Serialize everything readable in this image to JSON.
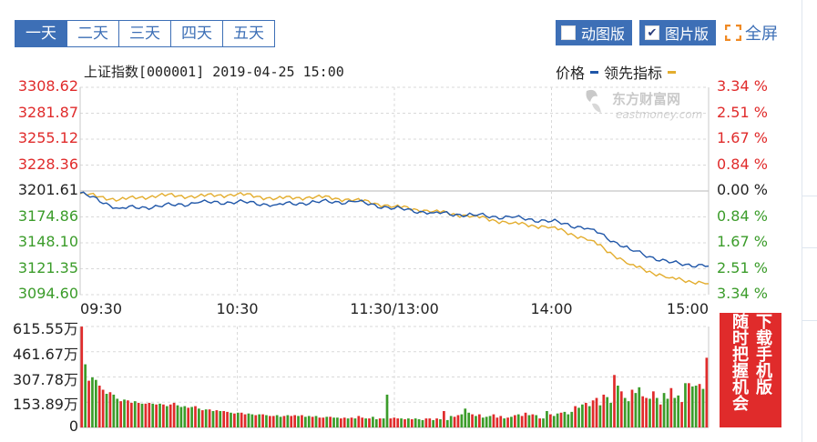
{
  "tabs": [
    {
      "label": "一天",
      "active": true
    },
    {
      "label": "二天",
      "active": false
    },
    {
      "label": "三天",
      "active": false
    },
    {
      "label": "四天",
      "active": false
    },
    {
      "label": "五天",
      "active": false
    }
  ],
  "view_modes": {
    "animated_label": "动图版",
    "animated_checked": false,
    "picture_label": "图片版",
    "picture_checked": true
  },
  "fullscreen_label": "全屏",
  "chart_header": {
    "title": "上证指数[000001] 2019-04-25 15:00",
    "legend_price": "价格",
    "legend_leading": "领先指标"
  },
  "watermark": {
    "name": "东方财富网",
    "domain": "eastmoney.com"
  },
  "ad_lines": [
    "下载手机版",
    "随时把握机会"
  ],
  "colors": {
    "up": "#e02b2b",
    "down": "#3b9c2a",
    "neutral": "#222222",
    "price_line": "#1f56a8",
    "leading_line": "#e3ad2e",
    "tab_blue": "#3d6fb6"
  },
  "chart_data": [
    {
      "type": "line",
      "title": "上证指数[000001] 2019-04-25 15:00",
      "x_ticks": [
        "09:30",
        "10:30",
        "11:30/13:00",
        "14:00",
        "15:00"
      ],
      "y_left_ticks": [
        {
          "label": "3308.62",
          "value": 3308.62,
          "trend": "up"
        },
        {
          "label": "3281.87",
          "value": 3281.87,
          "trend": "up"
        },
        {
          "label": "3255.12",
          "value": 3255.12,
          "trend": "up"
        },
        {
          "label": "3228.36",
          "value": 3228.36,
          "trend": "up"
        },
        {
          "label": "3201.61",
          "value": 3201.61,
          "trend": "flat"
        },
        {
          "label": "3174.86",
          "value": 3174.86,
          "trend": "down"
        },
        {
          "label": "3148.10",
          "value": 3148.1,
          "trend": "down"
        },
        {
          "label": "3121.35",
          "value": 3121.35,
          "trend": "down"
        },
        {
          "label": "3094.60",
          "value": 3094.6,
          "trend": "down"
        }
      ],
      "y_right_ticks": [
        {
          "label": "3.34 %",
          "trend": "up"
        },
        {
          "label": "2.51 %",
          "trend": "up"
        },
        {
          "label": "1.67 %",
          "trend": "up"
        },
        {
          "label": "0.84 %",
          "trend": "up"
        },
        {
          "label": "0.00 %",
          "trend": "flat"
        },
        {
          "label": "0.84 %",
          "trend": "down"
        },
        {
          "label": "1.67 %",
          "trend": "down"
        },
        {
          "label": "2.51 %",
          "trend": "down"
        },
        {
          "label": "3.34 %",
          "trend": "down"
        }
      ],
      "ylim": [
        3094.6,
        3308.62
      ],
      "grid": true,
      "time_points": [
        "09:30",
        "09:45",
        "10:00",
        "10:15",
        "10:30",
        "10:45",
        "11:00",
        "11:15",
        "11:30/13:00",
        "13:15",
        "13:30",
        "13:45",
        "14:00",
        "14:15",
        "14:30",
        "14:45",
        "15:00"
      ],
      "series": [
        {
          "name": "价格",
          "values": [
            3199.5,
            3183.6,
            3185.8,
            3189.5,
            3190.3,
            3187.4,
            3190.3,
            3190.5,
            3183.6,
            3179.0,
            3176.8,
            3174.2,
            3170.3,
            3162.4,
            3141.0,
            3127.5,
            3124.1
          ]
        },
        {
          "name": "领先指标",
          "values": [
            3198.8,
            3192.6,
            3197.1,
            3196.2,
            3198.3,
            3193.9,
            3195.6,
            3192.5,
            3185.6,
            3180.6,
            3175.5,
            3168.4,
            3164.2,
            3150.7,
            3125.6,
            3111.8,
            3106.0
          ]
        }
      ]
    },
    {
      "type": "bar",
      "title": "",
      "y_ticks": [
        "615.55万",
        "461.67万",
        "307.78万",
        "153.89万",
        "0"
      ],
      "ylim": [
        0,
        615.55
      ],
      "unit": "万",
      "volumes": [
        615,
        385,
        285,
        305,
        290,
        255,
        230,
        205,
        215,
        200,
        175,
        160,
        170,
        165,
        150,
        160,
        150,
        145,
        145,
        150,
        145,
        140,
        145,
        140,
        130,
        140,
        150,
        135,
        125,
        130,
        120,
        125,
        130,
        115,
        105,
        110,
        110,
        100,
        105,
        100,
        100,
        95,
        90,
        85,
        90,
        90,
        80,
        85,
        80,
        75,
        80,
        80,
        75,
        70,
        70,
        75,
        65,
        70,
        75,
        70,
        75,
        70,
        75,
        65,
        70,
        65,
        70,
        60,
        60,
        65,
        65,
        60,
        60,
        55,
        60,
        55,
        60,
        55,
        70,
        60,
        55,
        55,
        65,
        50,
        55,
        55,
        200,
        55,
        60,
        55,
        55,
        50,
        55,
        50,
        55,
        50,
        45,
        55,
        55,
        45,
        55,
        50,
        100,
        45,
        70,
        65,
        75,
        80,
        115,
        90,
        80,
        70,
        80,
        60,
        65,
        70,
        80,
        60,
        70,
        55,
        60,
        65,
        75,
        80,
        70,
        90,
        75,
        80,
        75,
        55,
        55,
        100,
        80,
        70,
        85,
        90,
        95,
        80,
        95,
        130,
        120,
        140,
        150,
        130,
        165,
        180,
        135,
        200,
        185,
        150,
        320,
        255,
        220,
        180,
        160,
        230,
        210,
        245,
        190,
        180,
        175,
        220,
        180,
        140,
        210,
        175,
        240,
        180,
        195,
        155,
        270,
        270,
        250,
        255,
        265,
        235,
        425
      ],
      "directions": "rgrggrrgrggrgrrgrgrrgrgrgrrgggrgrgrgrgrgrrgrgrrggrgrgrrggrgrrgrggrgrrgrggrrgrgrrgrggrggrrrgrgrgggrrgrgrggrrgggrgrgggrrrgrgrgrrgrgrggrggrgggrggrgrrgrggrgrggrggrrgrgrggrggrgrggrgrr"
    }
  ]
}
